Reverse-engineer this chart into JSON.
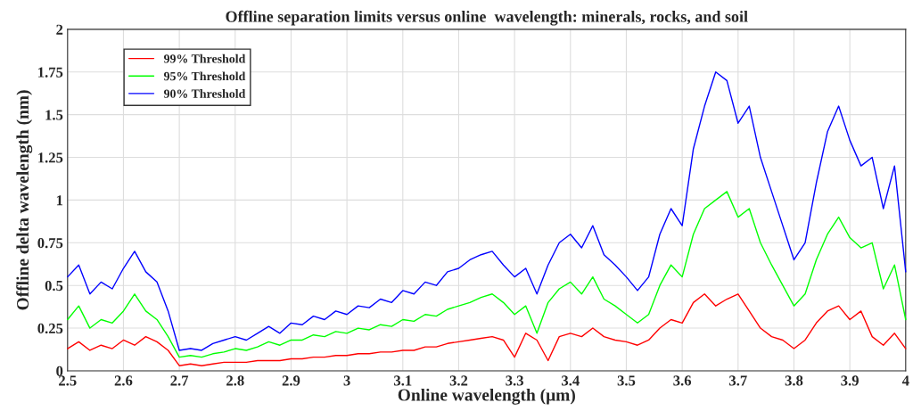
{
  "chart_data": {
    "type": "line",
    "title": "Offline separation limits versus online  wavelength: minerals, rocks, and soil",
    "xlabel": "Online wavelength (μm)",
    "ylabel": "Offline delta wavelength (nm)",
    "x": [
      2.5,
      2.52,
      2.54,
      2.56,
      2.58,
      2.6,
      2.62,
      2.64,
      2.66,
      2.68,
      2.7,
      2.72,
      2.74,
      2.76,
      2.78,
      2.8,
      2.82,
      2.84,
      2.86,
      2.88,
      2.9,
      2.92,
      2.94,
      2.96,
      2.98,
      3,
      3.02,
      3.04,
      3.06,
      3.08,
      3.1,
      3.12,
      3.14,
      3.16,
      3.18,
      3.2,
      3.22,
      3.24,
      3.26,
      3.28,
      3.3,
      3.32,
      3.34,
      3.36,
      3.38,
      3.4,
      3.42,
      3.44,
      3.46,
      3.48,
      3.5,
      3.52,
      3.54,
      3.56,
      3.58,
      3.6,
      3.62,
      3.64,
      3.66,
      3.68,
      3.7,
      3.72,
      3.74,
      3.76,
      3.78,
      3.8,
      3.82,
      3.84,
      3.86,
      3.88,
      3.9,
      3.92,
      3.94,
      3.96,
      3.98,
      4
    ],
    "series": [
      {
        "name": "99% Threshold",
        "color": "#ff0000",
        "values": [
          0.13,
          0.17,
          0.12,
          0.15,
          0.13,
          0.18,
          0.15,
          0.2,
          0.17,
          0.12,
          0.03,
          0.04,
          0.03,
          0.04,
          0.05,
          0.05,
          0.05,
          0.06,
          0.06,
          0.06,
          0.07,
          0.07,
          0.08,
          0.08,
          0.09,
          0.09,
          0.1,
          0.1,
          0.11,
          0.11,
          0.12,
          0.12,
          0.14,
          0.14,
          0.16,
          0.17,
          0.18,
          0.19,
          0.2,
          0.18,
          0.08,
          0.22,
          0.18,
          0.06,
          0.2,
          0.22,
          0.2,
          0.25,
          0.2,
          0.18,
          0.17,
          0.15,
          0.18,
          0.25,
          0.3,
          0.28,
          0.4,
          0.45,
          0.38,
          0.42,
          0.45,
          0.35,
          0.25,
          0.2,
          0.18,
          0.13,
          0.18,
          0.28,
          0.35,
          0.38,
          0.3,
          0.35,
          0.2,
          0.15,
          0.22,
          0.13
        ]
      },
      {
        "name": "95% Threshold",
        "color": "#00ff00",
        "values": [
          0.3,
          0.38,
          0.25,
          0.3,
          0.28,
          0.35,
          0.45,
          0.35,
          0.3,
          0.2,
          0.08,
          0.09,
          0.08,
          0.1,
          0.11,
          0.13,
          0.12,
          0.14,
          0.17,
          0.15,
          0.18,
          0.18,
          0.21,
          0.2,
          0.23,
          0.22,
          0.25,
          0.24,
          0.27,
          0.26,
          0.3,
          0.29,
          0.33,
          0.32,
          0.36,
          0.38,
          0.4,
          0.43,
          0.45,
          0.4,
          0.33,
          0.38,
          0.22,
          0.4,
          0.48,
          0.52,
          0.45,
          0.55,
          0.42,
          0.38,
          0.33,
          0.28,
          0.33,
          0.5,
          0.62,
          0.55,
          0.8,
          0.95,
          1.0,
          1.05,
          0.9,
          0.95,
          0.75,
          0.62,
          0.5,
          0.38,
          0.45,
          0.65,
          0.8,
          0.9,
          0.78,
          0.72,
          0.75,
          0.48,
          0.62,
          0.3
        ]
      },
      {
        "name": "90% Threshold",
        "color": "#0000ff",
        "values": [
          0.55,
          0.62,
          0.45,
          0.52,
          0.48,
          0.6,
          0.7,
          0.58,
          0.52,
          0.35,
          0.12,
          0.13,
          0.12,
          0.16,
          0.18,
          0.2,
          0.18,
          0.22,
          0.26,
          0.22,
          0.28,
          0.27,
          0.32,
          0.3,
          0.35,
          0.33,
          0.38,
          0.37,
          0.42,
          0.4,
          0.47,
          0.45,
          0.52,
          0.5,
          0.58,
          0.6,
          0.65,
          0.68,
          0.7,
          0.62,
          0.55,
          0.6,
          0.45,
          0.62,
          0.75,
          0.8,
          0.72,
          0.85,
          0.68,
          0.62,
          0.55,
          0.47,
          0.55,
          0.8,
          0.95,
          0.85,
          1.3,
          1.55,
          1.75,
          1.7,
          1.45,
          1.55,
          1.25,
          1.05,
          0.85,
          0.65,
          0.75,
          1.1,
          1.4,
          1.55,
          1.35,
          1.2,
          1.25,
          0.95,
          1.2,
          0.58
        ]
      }
    ],
    "xlim": [
      2.5,
      4
    ],
    "xticks": [
      2.5,
      2.6,
      2.7,
      2.8,
      2.9,
      3,
      3.1,
      3.2,
      3.3,
      3.4,
      3.5,
      3.6,
      3.7,
      3.8,
      3.9,
      4
    ],
    "ylim": [
      0,
      2
    ],
    "yticks": [
      0,
      0.25,
      0.5,
      0.75,
      1,
      1.25,
      1.5,
      1.75,
      2
    ],
    "grid": true,
    "legend": "top left",
    "line_style": "solid"
  }
}
